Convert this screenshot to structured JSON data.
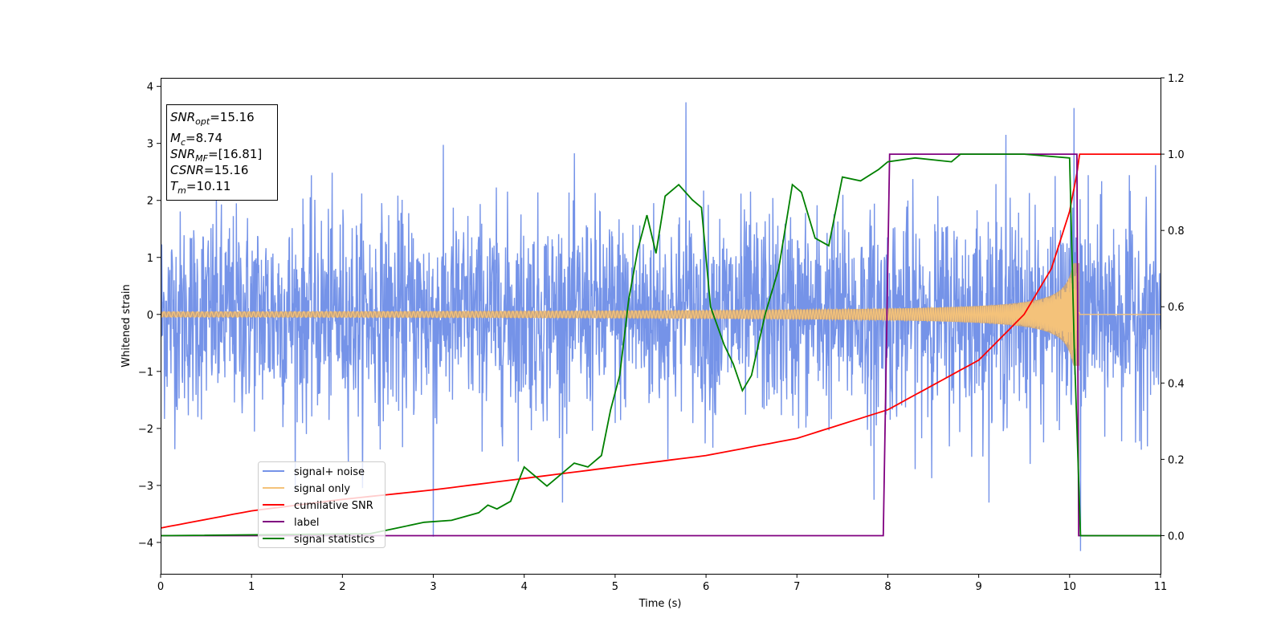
{
  "chart_data": {
    "type": "line",
    "xlabel": "Time (s)",
    "ylabel": "Whitened strain",
    "xlim": [
      0,
      11
    ],
    "ylim_left": [
      -4.55,
      4.15
    ],
    "ylim_right": [
      -0.1,
      1.2
    ],
    "x_ticks": [
      "0",
      "1",
      "2",
      "3",
      "4",
      "5",
      "6",
      "7",
      "8",
      "9",
      "10",
      "11"
    ],
    "y_ticks_left": [
      "4",
      "3",
      "2",
      "1",
      "0",
      "−1",
      "−2",
      "−3",
      "−4"
    ],
    "y_ticks_right": [
      "1.2",
      "1.0",
      "0.8",
      "0.6",
      "0.4",
      "0.2",
      "0.0"
    ],
    "grid": false,
    "legend_position": "lower-left",
    "series": [
      {
        "name": "signal+ noise",
        "color": "#7593e8",
        "axis": "left",
        "description_values": {
          "noise_sigma": 0.9,
          "peaks": [
            [
              5.78,
              3.72
            ],
            [
              10.12,
              -4.15
            ],
            [
              10.05,
              3.62
            ],
            [
              9.3,
              3.15
            ],
            [
              3.0,
              -3.9
            ],
            [
              7.85,
              -3.25
            ]
          ]
        }
      },
      {
        "name": "signal only",
        "color": "#f4c27a",
        "axis": "left",
        "chirp": {
          "t_merge": 10.11,
          "amp_end": 0.9,
          "amp_start": 0.05
        }
      },
      {
        "name": "cumilative SNR",
        "color": "#ff0000",
        "axis": "right",
        "x": [
          0,
          1,
          2,
          3,
          4,
          5,
          6,
          7,
          8,
          9,
          9.5,
          9.8,
          10.0,
          10.08,
          10.11,
          11
        ],
        "values": [
          0.02,
          0.065,
          0.095,
          0.12,
          0.15,
          0.18,
          0.21,
          0.255,
          0.33,
          0.46,
          0.58,
          0.7,
          0.85,
          0.95,
          1.0,
          1.0
        ]
      },
      {
        "name": "label",
        "color": "#800080",
        "axis": "right",
        "x": [
          0,
          7.95,
          8.02,
          10.08,
          10.1,
          11
        ],
        "values": [
          0.0,
          0.0,
          1.0,
          1.0,
          0.0,
          0.0
        ]
      },
      {
        "name": "signal statistics",
        "color": "#008000",
        "axis": "right",
        "x": [
          0,
          2.3,
          2.6,
          2.9,
          3.2,
          3.5,
          3.6,
          3.7,
          3.85,
          4.0,
          4.25,
          4.4,
          4.55,
          4.7,
          4.85,
          4.95,
          5.05,
          5.15,
          5.25,
          5.35,
          5.45,
          5.55,
          5.7,
          5.85,
          5.95,
          6.05,
          6.2,
          6.3,
          6.4,
          6.5,
          6.65,
          6.8,
          6.95,
          7.05,
          7.2,
          7.35,
          7.5,
          7.7,
          7.9,
          8.0,
          8.3,
          8.7,
          8.8,
          9.0,
          9.5,
          10.0,
          10.05,
          10.12,
          10.2,
          11
        ],
        "values": [
          0.0,
          0.005,
          0.02,
          0.035,
          0.04,
          0.06,
          0.08,
          0.07,
          0.09,
          0.18,
          0.13,
          0.16,
          0.19,
          0.18,
          0.21,
          0.33,
          0.42,
          0.62,
          0.75,
          0.84,
          0.74,
          0.89,
          0.92,
          0.88,
          0.86,
          0.6,
          0.5,
          0.45,
          0.38,
          0.42,
          0.58,
          0.7,
          0.92,
          0.9,
          0.78,
          0.76,
          0.94,
          0.93,
          0.96,
          0.98,
          0.99,
          0.98,
          1.0,
          1.0,
          1.0,
          0.99,
          0.5,
          0.0,
          0.0,
          0.0
        ]
      }
    ],
    "annotation": {
      "lines": [
        {
          "base": "SNR",
          "sub": "opt",
          "rest": "=15.16"
        },
        {
          "base": "M",
          "sub": "c",
          "rest": "=8.74"
        },
        {
          "base": "SNR",
          "sub": "MF",
          "rest": "=[16.81]"
        },
        {
          "base": "CSNR",
          "sub": "",
          "rest": "=15.16"
        },
        {
          "base": "T",
          "sub": "m",
          "rest": "=10.11"
        }
      ]
    }
  }
}
